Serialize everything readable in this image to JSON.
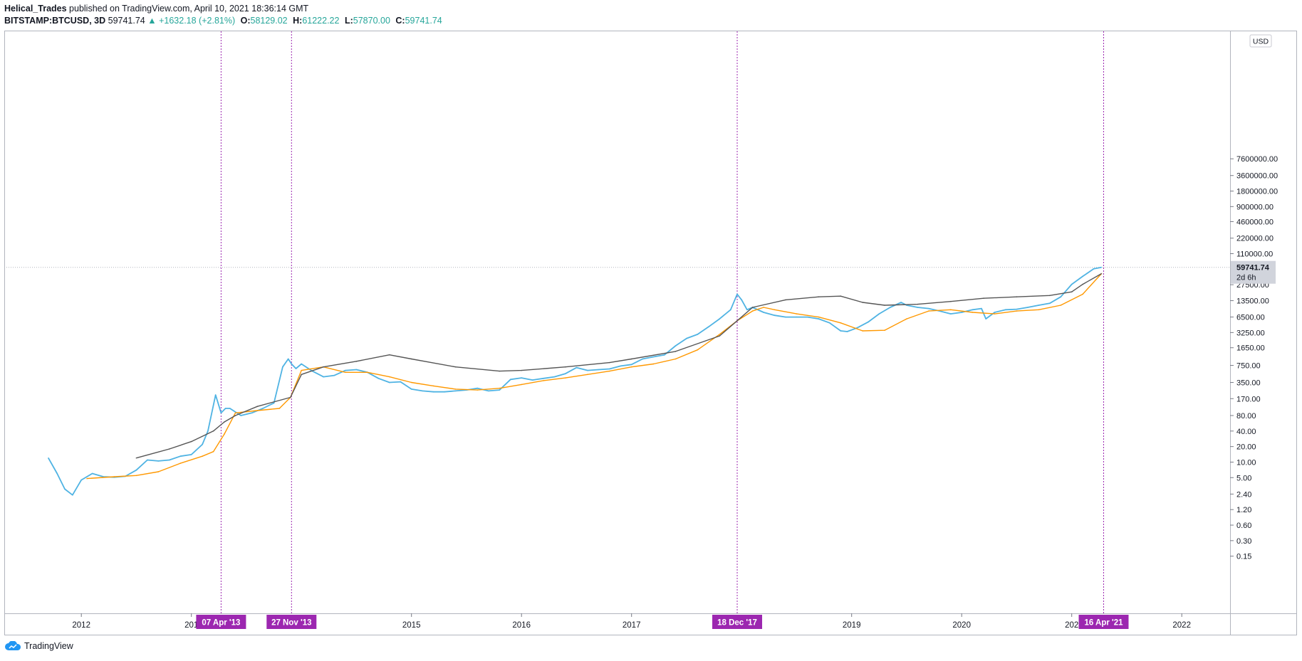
{
  "header": {
    "author": "Helical_Trades",
    "published_text": "published on TradingView.com, April 10, 2021 18:36:14 GMT",
    "symbol": "BITSTAMP:BTCUSD, 3D",
    "last": "59741.74",
    "change": "▲ +1632.18 (+2.81%)",
    "o_label": "O:",
    "o": "58129.02",
    "h_label": "H:",
    "h": "61222.22",
    "l_label": "L:",
    "l": "57870.00",
    "c_label": "C:",
    "c": "59741.74"
  },
  "footer": {
    "brand": "TradingView"
  },
  "chart_data": {
    "type": "line",
    "y_scale": "log",
    "currency_label": "USD",
    "ylim": [
      0.1,
      8000000
    ],
    "price_ticks": [
      "7600000.00",
      "3600000.00",
      "1800000.00",
      "900000.00",
      "460000.00",
      "220000.00",
      "110000.00",
      "27500.00",
      "13500.00",
      "6500.00",
      "3250.00",
      "1650.00",
      "750.00",
      "350.00",
      "170.00",
      "80.00",
      "40.00",
      "20.00",
      "10.00",
      "5.00",
      "2.40",
      "1.20",
      "0.60",
      "0.30",
      "0.15"
    ],
    "x_ticks": [
      "2012",
      "201",
      "2015",
      "2016",
      "2017",
      "2019",
      "2020",
      "202",
      "2022"
    ],
    "current_price": {
      "label": "59741.74",
      "countdown": "2d 6h",
      "value": 59741.74
    },
    "date_markers": [
      {
        "label": "07 Apr '13"
      },
      {
        "label": "27 Nov '13"
      },
      {
        "label": "18 Dec '17"
      },
      {
        "label": "16 Apr '21"
      }
    ],
    "series": [
      {
        "color": "#4fb3e3",
        "x": [
          2011.7,
          2011.78,
          2011.85,
          2011.92,
          2012.0,
          2012.1,
          2012.2,
          2012.3,
          2012.4,
          2012.5,
          2012.6,
          2012.7,
          2012.8,
          2012.9,
          2013.0,
          2013.1,
          2013.15,
          2013.22,
          2013.27,
          2013.31,
          2013.35,
          2013.45,
          2013.55,
          2013.65,
          2013.75,
          2013.83,
          2013.88,
          2013.91,
          2013.95,
          2014.0,
          2014.1,
          2014.2,
          2014.3,
          2014.4,
          2014.5,
          2014.6,
          2014.7,
          2014.8,
          2014.9,
          2015.0,
          2015.1,
          2015.2,
          2015.3,
          2015.4,
          2015.5,
          2015.6,
          2015.7,
          2015.8,
          2015.9,
          2016.0,
          2016.1,
          2016.2,
          2016.3,
          2016.4,
          2016.5,
          2016.6,
          2016.7,
          2016.8,
          2016.9,
          2017.0,
          2017.1,
          2017.2,
          2017.3,
          2017.4,
          2017.5,
          2017.6,
          2017.7,
          2017.8,
          2017.9,
          2017.96,
          2018.0,
          2018.05,
          2018.1,
          2018.2,
          2018.3,
          2018.4,
          2018.5,
          2018.6,
          2018.7,
          2018.8,
          2018.9,
          2018.96,
          2019.05,
          2019.15,
          2019.25,
          2019.35,
          2019.45,
          2019.5,
          2019.6,
          2019.7,
          2019.8,
          2019.9,
          2020.0,
          2020.1,
          2020.18,
          2020.22,
          2020.3,
          2020.4,
          2020.5,
          2020.6,
          2020.7,
          2020.8,
          2020.9,
          2021.0,
          2021.1,
          2021.2,
          2021.27
        ],
        "y": [
          12,
          6,
          3,
          2.3,
          4.5,
          6,
          5.2,
          5.1,
          5.3,
          7,
          11,
          10.5,
          11,
          13,
          14,
          22,
          40,
          200,
          90,
          110,
          110,
          80,
          90,
          110,
          140,
          700,
          1000,
          800,
          650,
          800,
          580,
          450,
          480,
          600,
          620,
          550,
          420,
          350,
          360,
          260,
          240,
          230,
          230,
          240,
          250,
          270,
          240,
          250,
          400,
          430,
          390,
          420,
          450,
          520,
          680,
          600,
          620,
          640,
          730,
          780,
          1000,
          1100,
          1200,
          1800,
          2500,
          3000,
          4200,
          6000,
          9000,
          18000,
          14000,
          9000,
          10000,
          8000,
          7000,
          6500,
          6500,
          6500,
          6000,
          5000,
          3500,
          3400,
          4000,
          5200,
          7500,
          10000,
          12500,
          11000,
          10000,
          9500,
          8500,
          7500,
          8000,
          9000,
          9500,
          6000,
          8000,
          9000,
          9200,
          10000,
          11000,
          12000,
          16000,
          28000,
          40000,
          56000,
          59741
        ]
      },
      {
        "color": "#ff9800",
        "x": [
          2012.05,
          2012.3,
          2012.5,
          2012.7,
          2012.9,
          2013.1,
          2013.2,
          2013.3,
          2013.4,
          2013.6,
          2013.8,
          2013.9,
          2014.0,
          2014.2,
          2014.4,
          2014.6,
          2014.8,
          2015.0,
          2015.2,
          2015.4,
          2015.6,
          2015.8,
          2016.0,
          2016.2,
          2016.4,
          2016.6,
          2016.8,
          2017.0,
          2017.2,
          2017.4,
          2017.6,
          2017.8,
          2017.96,
          2018.1,
          2018.2,
          2018.3,
          2018.5,
          2018.7,
          2018.9,
          2019.1,
          2019.3,
          2019.5,
          2019.7,
          2019.9,
          2020.1,
          2020.3,
          2020.5,
          2020.7,
          2020.9,
          2021.1,
          2021.27
        ],
        "y": [
          4.8,
          5.2,
          5.5,
          6.5,
          9.5,
          13,
          16,
          35,
          90,
          100,
          110,
          180,
          600,
          700,
          550,
          550,
          450,
          350,
          300,
          260,
          250,
          270,
          320,
          380,
          430,
          500,
          580,
          700,
          800,
          1000,
          1500,
          3000,
          5500,
          8500,
          10000,
          9000,
          7500,
          6500,
          5000,
          3500,
          3600,
          6000,
          8500,
          9000,
          8000,
          7500,
          8500,
          9000,
          11000,
          18000,
          45000
        ]
      },
      {
        "color": "#555555",
        "x": [
          2012.5,
          2012.8,
          2013.0,
          2013.2,
          2013.3,
          2013.4,
          2013.6,
          2013.9,
          2014.0,
          2014.2,
          2014.5,
          2014.8,
          2015.0,
          2015.4,
          2015.8,
          2016.0,
          2016.4,
          2016.8,
          2017.0,
          2017.4,
          2017.8,
          2017.96,
          2018.1,
          2018.4,
          2018.7,
          2018.9,
          2019.1,
          2019.3,
          2019.6,
          2019.9,
          2020.2,
          2020.5,
          2020.8,
          2021.0,
          2021.1,
          2021.27
        ],
        "y": [
          12,
          18,
          25,
          40,
          60,
          80,
          120,
          180,
          500,
          700,
          900,
          1200,
          1000,
          700,
          580,
          600,
          700,
          850,
          1000,
          1400,
          2800,
          5500,
          10000,
          14000,
          16000,
          16500,
          12500,
          11000,
          11500,
          13000,
          15000,
          16000,
          17000,
          20000,
          28000,
          45000
        ]
      }
    ]
  }
}
